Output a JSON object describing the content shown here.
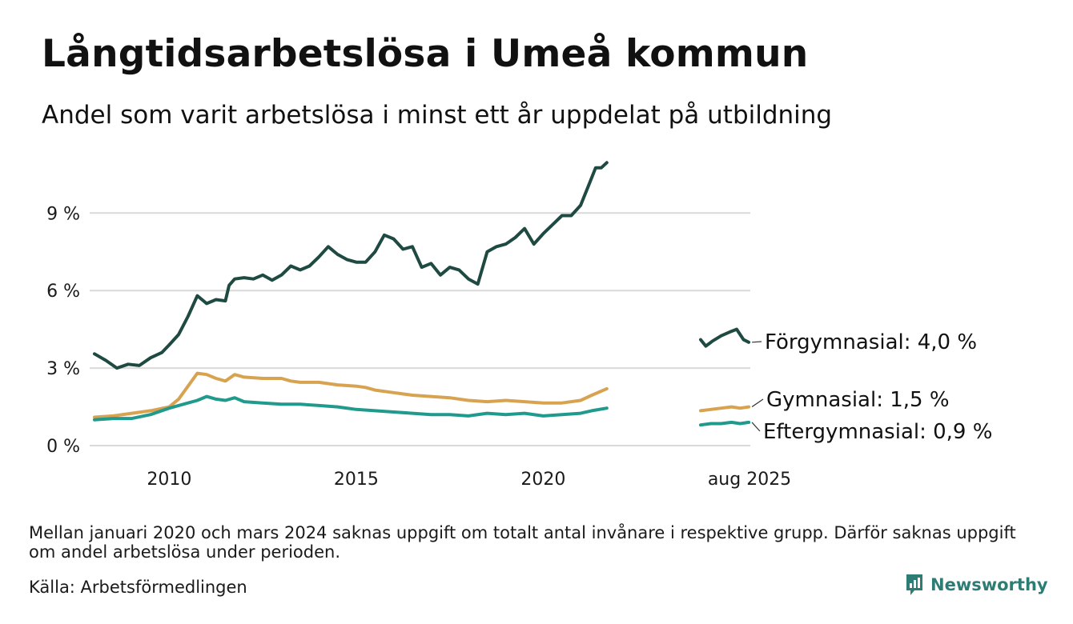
{
  "title": "Långtidsarbetslösa i Umeå kommun",
  "subtitle": "Andel som varit arbetslösa i minst ett år uppdelat på utbildning",
  "note": "Mellan januari 2020 och mars 2024 saknas uppgift om totalt antal invånare i respektive grupp. Därför saknas uppgift om andel arbetslösa under perioden.",
  "source": "Källa: Arbetsförmedlingen",
  "brand": "Newsworthy",
  "chart_data": {
    "type": "line",
    "title": "Långtidsarbetslösa i Umeå kommun",
    "subtitle": "Andel som varit arbetslösa i minst ett år uppdelat på utbildning",
    "ylim": [
      0,
      11
    ],
    "yticks": [
      0,
      3,
      6,
      9
    ],
    "ytick_labels": [
      "0 %",
      "3 %",
      "6 %",
      "9 %"
    ],
    "xticks": [
      2010,
      2015,
      2020
    ],
    "xtick_labels": [
      "2010",
      "2015",
      "2020"
    ],
    "x_last_label": "aug 2025",
    "grid": true,
    "legend": "inline-right",
    "series": [
      {
        "name": "Förgymnasial",
        "end_label": "Förgymnasial: 4,0 %",
        "color": "#1f4a42",
        "segments": [
          [
            [
              2008.0,
              3.55
            ],
            [
              2008.3,
              3.3
            ],
            [
              2008.6,
              3.0
            ],
            [
              2008.9,
              3.15
            ],
            [
              2009.2,
              3.1
            ],
            [
              2009.5,
              3.4
            ],
            [
              2009.8,
              3.6
            ],
            [
              2010.0,
              3.9
            ],
            [
              2010.25,
              4.3
            ],
            [
              2010.5,
              5.0
            ],
            [
              2010.75,
              5.8
            ],
            [
              2011.0,
              5.5
            ],
            [
              2011.25,
              5.65
            ],
            [
              2011.5,
              5.6
            ],
            [
              2011.6,
              6.2
            ],
            [
              2011.75,
              6.45
            ],
            [
              2012.0,
              6.5
            ],
            [
              2012.25,
              6.45
            ],
            [
              2012.5,
              6.6
            ],
            [
              2012.75,
              6.4
            ],
            [
              2013.0,
              6.6
            ],
            [
              2013.25,
              6.95
            ],
            [
              2013.5,
              6.8
            ],
            [
              2013.75,
              6.95
            ],
            [
              2014.0,
              7.3
            ],
            [
              2014.25,
              7.7
            ],
            [
              2014.5,
              7.4
            ],
            [
              2014.75,
              7.2
            ],
            [
              2015.0,
              7.1
            ],
            [
              2015.25,
              7.1
            ],
            [
              2015.5,
              7.5
            ],
            [
              2015.75,
              8.15
            ],
            [
              2016.0,
              8.0
            ],
            [
              2016.25,
              7.6
            ],
            [
              2016.5,
              7.7
            ],
            [
              2016.75,
              6.9
            ],
            [
              2017.0,
              7.05
            ],
            [
              2017.25,
              6.6
            ],
            [
              2017.5,
              6.9
            ],
            [
              2017.75,
              6.8
            ],
            [
              2018.0,
              6.45
            ],
            [
              2018.25,
              6.25
            ],
            [
              2018.5,
              7.5
            ],
            [
              2018.75,
              7.7
            ],
            [
              2019.0,
              7.8
            ],
            [
              2019.25,
              8.05
            ],
            [
              2019.5,
              8.4
            ],
            [
              2019.75,
              7.8
            ],
            [
              2020.0,
              8.2
            ],
            [
              2020.25,
              8.55
            ],
            [
              2020.5,
              8.9
            ],
            [
              2020.75,
              8.9
            ],
            [
              2021.0,
              9.3
            ],
            [
              2021.25,
              10.2
            ],
            [
              2021.4,
              10.75
            ],
            [
              2021.55,
              10.75
            ],
            [
              2021.7,
              10.95
            ]
          ],
          [
            [
              2024.2,
              4.1
            ],
            [
              2024.35,
              3.85
            ],
            [
              2024.55,
              4.05
            ],
            [
              2024.8,
              4.25
            ],
            [
              2025.05,
              4.4
            ],
            [
              2025.25,
              4.5
            ],
            [
              2025.45,
              4.1
            ],
            [
              2025.6,
              4.0
            ]
          ]
        ]
      },
      {
        "name": "Gymnasial",
        "end_label": "Gymnasial: 1,5 %",
        "color": "#d7a351",
        "segments": [
          [
            [
              2008.0,
              1.1
            ],
            [
              2008.5,
              1.15
            ],
            [
              2009.0,
              1.25
            ],
            [
              2009.5,
              1.35
            ],
            [
              2010.0,
              1.5
            ],
            [
              2010.25,
              1.8
            ],
            [
              2010.5,
              2.3
            ],
            [
              2010.75,
              2.8
            ],
            [
              2011.0,
              2.75
            ],
            [
              2011.25,
              2.6
            ],
            [
              2011.5,
              2.5
            ],
            [
              2011.75,
              2.75
            ],
            [
              2012.0,
              2.65
            ],
            [
              2012.5,
              2.6
            ],
            [
              2013.0,
              2.6
            ],
            [
              2013.25,
              2.5
            ],
            [
              2013.5,
              2.45
            ],
            [
              2014.0,
              2.45
            ],
            [
              2014.5,
              2.35
            ],
            [
              2015.0,
              2.3
            ],
            [
              2015.25,
              2.25
            ],
            [
              2015.5,
              2.15
            ],
            [
              2016.0,
              2.05
            ],
            [
              2016.5,
              1.95
            ],
            [
              2017.0,
              1.9
            ],
            [
              2017.5,
              1.85
            ],
            [
              2018.0,
              1.75
            ],
            [
              2018.5,
              1.7
            ],
            [
              2019.0,
              1.75
            ],
            [
              2019.5,
              1.7
            ],
            [
              2020.0,
              1.65
            ],
            [
              2020.5,
              1.65
            ],
            [
              2021.0,
              1.75
            ],
            [
              2021.3,
              1.95
            ],
            [
              2021.7,
              2.2
            ]
          ],
          [
            [
              2024.2,
              1.35
            ],
            [
              2024.5,
              1.4
            ],
            [
              2024.8,
              1.45
            ],
            [
              2025.1,
              1.5
            ],
            [
              2025.35,
              1.45
            ],
            [
              2025.6,
              1.5
            ]
          ]
        ]
      },
      {
        "name": "Eftergymnasial",
        "end_label": "Eftergymnasial: 0,9 %",
        "color": "#219a8e",
        "segments": [
          [
            [
              2008.0,
              1.0
            ],
            [
              2008.5,
              1.05
            ],
            [
              2009.0,
              1.05
            ],
            [
              2009.5,
              1.2
            ],
            [
              2010.0,
              1.45
            ],
            [
              2010.5,
              1.65
            ],
            [
              2010.75,
              1.75
            ],
            [
              2011.0,
              1.9
            ],
            [
              2011.25,
              1.8
            ],
            [
              2011.5,
              1.75
            ],
            [
              2011.75,
              1.85
            ],
            [
              2012.0,
              1.7
            ],
            [
              2012.5,
              1.65
            ],
            [
              2013.0,
              1.6
            ],
            [
              2013.5,
              1.6
            ],
            [
              2014.0,
              1.55
            ],
            [
              2014.5,
              1.5
            ],
            [
              2015.0,
              1.4
            ],
            [
              2015.5,
              1.35
            ],
            [
              2016.0,
              1.3
            ],
            [
              2016.5,
              1.25
            ],
            [
              2017.0,
              1.2
            ],
            [
              2017.5,
              1.2
            ],
            [
              2018.0,
              1.15
            ],
            [
              2018.5,
              1.25
            ],
            [
              2019.0,
              1.2
            ],
            [
              2019.5,
              1.25
            ],
            [
              2020.0,
              1.15
            ],
            [
              2020.5,
              1.2
            ],
            [
              2021.0,
              1.25
            ],
            [
              2021.3,
              1.35
            ],
            [
              2021.7,
              1.45
            ]
          ],
          [
            [
              2024.2,
              0.8
            ],
            [
              2024.5,
              0.85
            ],
            [
              2024.8,
              0.85
            ],
            [
              2025.1,
              0.9
            ],
            [
              2025.35,
              0.85
            ],
            [
              2025.6,
              0.9
            ]
          ]
        ]
      }
    ]
  }
}
